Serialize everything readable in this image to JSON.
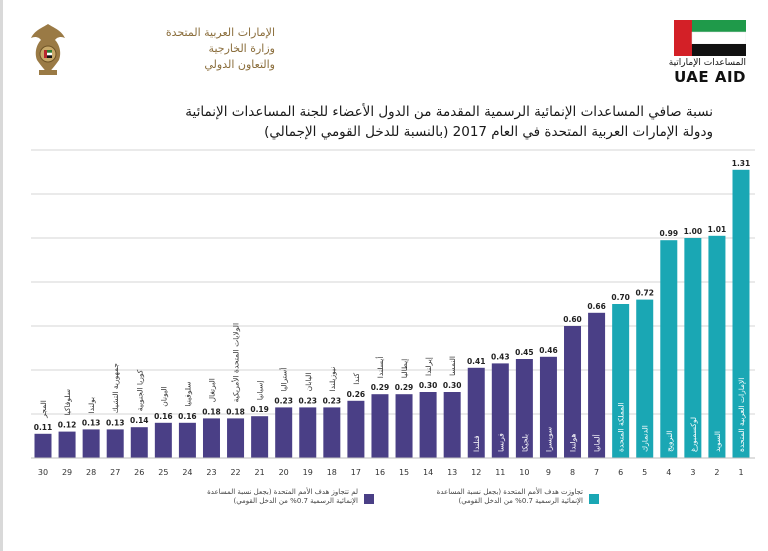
{
  "header": {
    "ministry_line1": "الإمارات العربية المتحدة",
    "ministry_line2": "وزارة الخارجية",
    "ministry_line3": "والتعاون الدولي",
    "aid_arabic": "المساعدات الإماراتية",
    "aid_english": "UAE AID"
  },
  "chart_data": {
    "type": "bar",
    "title_line1": "نسبة صافي المساعدات الإنمائية الرسمية المقدمة من الدول الأعضاء للجنة المساعدات الإنمائية",
    "title_line2": "ودولة الإمارات العربية المتحدة في العام 2017 (بالنسبة للدخل القومي الإجمالي)",
    "ylim": [
      0,
      1.4
    ],
    "grid": true,
    "colors": {
      "exceed": "#1aa7b4",
      "below": "#4a3f86",
      "grid": "#d4d4d4"
    },
    "bars": [
      {
        "rank": "1",
        "country": "الإمارات العربية المتحدة",
        "value": 1.31,
        "group": "exceed"
      },
      {
        "rank": "2",
        "country": "السويد",
        "value": 1.01,
        "group": "exceed"
      },
      {
        "rank": "3",
        "country": "لوكسمبورغ",
        "value": 1.0,
        "group": "exceed"
      },
      {
        "rank": "4",
        "country": "النرويج",
        "value": 0.99,
        "group": "exceed"
      },
      {
        "rank": "5",
        "country": "الدنمارك",
        "value": 0.72,
        "group": "exceed"
      },
      {
        "rank": "6",
        "country": "المملكة المتحدة",
        "value": 0.7,
        "group": "exceed"
      },
      {
        "rank": "7",
        "country": "ألمانيا",
        "value": 0.66,
        "group": "below"
      },
      {
        "rank": "8",
        "country": "هولندا",
        "value": 0.6,
        "group": "below"
      },
      {
        "rank": "9",
        "country": "سويسرا",
        "value": 0.46,
        "group": "below"
      },
      {
        "rank": "10",
        "country": "بلجيكا",
        "value": 0.45,
        "group": "below"
      },
      {
        "rank": "11",
        "country": "فرنسا",
        "value": 0.43,
        "group": "below"
      },
      {
        "rank": "12",
        "country": "فنلندا",
        "value": 0.41,
        "group": "below"
      },
      {
        "rank": "13",
        "country": "النمسا",
        "value": 0.3,
        "group": "below"
      },
      {
        "rank": "14",
        "country": "إيرلندا",
        "value": 0.3,
        "group": "below"
      },
      {
        "rank": "15",
        "country": "إيطاليا",
        "value": 0.29,
        "group": "below"
      },
      {
        "rank": "16",
        "country": "أيسلندا",
        "value": 0.29,
        "group": "below"
      },
      {
        "rank": "17",
        "country": "كندا",
        "value": 0.26,
        "group": "below"
      },
      {
        "rank": "18",
        "country": "نيوزيلندا",
        "value": 0.23,
        "group": "below"
      },
      {
        "rank": "19",
        "country": "اليابان",
        "value": 0.23,
        "group": "below"
      },
      {
        "rank": "20",
        "country": "أستراليا",
        "value": 0.23,
        "group": "below"
      },
      {
        "rank": "21",
        "country": "إسبانيا",
        "value": 0.19,
        "group": "below"
      },
      {
        "rank": "22",
        "country": "الولايات المتحدة الأمريكية",
        "value": 0.18,
        "group": "below"
      },
      {
        "rank": "23",
        "country": "البرتغال",
        "value": 0.18,
        "group": "below"
      },
      {
        "rank": "24",
        "country": "سلوفينيا",
        "value": 0.16,
        "group": "below"
      },
      {
        "rank": "25",
        "country": "اليونان",
        "value": 0.16,
        "group": "below"
      },
      {
        "rank": "26",
        "country": "كوريا الجنوبية",
        "value": 0.14,
        "group": "below"
      },
      {
        "rank": "27",
        "country": "جمهورية التشيك",
        "value": 0.13,
        "group": "below"
      },
      {
        "rank": "28",
        "country": "بولندا",
        "value": 0.13,
        "group": "below"
      },
      {
        "rank": "29",
        "country": "سلوفاكيا",
        "value": 0.12,
        "group": "below"
      },
      {
        "rank": "30",
        "country": "المجر",
        "value": 0.11,
        "group": "below"
      }
    ],
    "legend": {
      "exceed_label": "تجاوزت هدف الأمم المتحدة (بجعل نسبة المساعدة الإنمائية الرسمية 0.7% من الدخل القومي)",
      "below_label": "لم تتجاوز هدف الأمم المتحدة (بجعل نسبة المساعدة الإنمائية الرسمية 0.7% من الدخل القومي)"
    }
  }
}
